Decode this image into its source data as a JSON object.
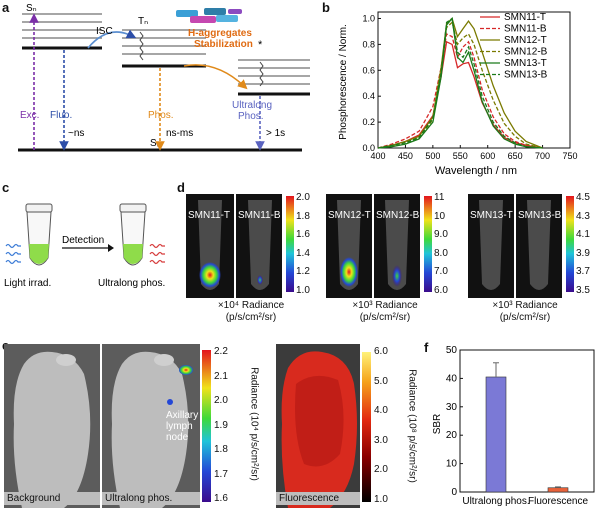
{
  "panels": [
    "a",
    "b",
    "c",
    "d",
    "e",
    "f"
  ],
  "panel_a": {
    "sn": "Sₙ",
    "tn": "Tₙ",
    "s0": "S₀",
    "isc": "ISC",
    "stabilization": [
      "H-aggregates",
      "Stabilization"
    ],
    "star": "*",
    "exc": "Exc.",
    "fluo": "Fluo.",
    "phos": "Phos.",
    "ultralong": [
      "Ultralong",
      "Phos."
    ],
    "t_fluo": "~ns",
    "t_phos": "ns-ms",
    "t_ultra": "> 1s"
  },
  "panel_c": {
    "detection": "Detection",
    "light_irrad": "Light irrad.",
    "ultralong_phos": "Ultralong phos."
  },
  "panel_d": {
    "groups": [
      {
        "tubes": [
          "SMN11-T",
          "SMN11-B"
        ],
        "ticks": [
          "2.0",
          "1.8",
          "1.6",
          "1.4",
          "1.2",
          "1.0"
        ],
        "unit": [
          "×10⁴ Radiance",
          "(p/s/cm²/sr)"
        ]
      },
      {
        "tubes": [
          "SMN12-T",
          "SMN12-B"
        ],
        "ticks": [
          "11",
          "10",
          "9.0",
          "8.0",
          "7.0",
          "6.0"
        ],
        "unit": [
          "×10³ Radiance",
          "(p/s/cm²/sr)"
        ]
      },
      {
        "tubes": [
          "SMN13-T",
          "SMN13-B"
        ],
        "ticks": [
          "4.5",
          "4.3",
          "4.1",
          "3.9",
          "3.7",
          "3.5"
        ],
        "unit": [
          "×10³ Radiance",
          "(p/s/cm²/sr)"
        ]
      }
    ]
  },
  "panel_e": {
    "background": "Background",
    "ultralong": "Ultralong phos.",
    "fluorescence": "Fluorescence",
    "node_label": [
      "Axillary",
      "lymph",
      "node"
    ],
    "scale1_ticks": [
      "2.2",
      "2.1",
      "2.0",
      "1.9",
      "1.8",
      "1.7",
      "1.6"
    ],
    "scale1_title": "Radiance (10⁴ p/s/cm²/sr)",
    "scale2_ticks": [
      "6.0",
      "5.0",
      "4.0",
      "3.0",
      "2.0",
      "1.0"
    ],
    "scale2_title": "Radiance (10⁸ p/s/cm²/sr)"
  },
  "chart_data": [
    {
      "type": "line",
      "title": "",
      "xlabel": "Wavelength / nm",
      "ylabel": "Phosphorescence / Norm.",
      "xlim": [
        400,
        750
      ],
      "ylim": [
        0,
        1.05
      ],
      "xticks": [
        400,
        450,
        500,
        550,
        600,
        650,
        700,
        750
      ],
      "yticks": [
        0.0,
        0.2,
        0.4,
        0.6,
        0.8,
        1.0
      ],
      "x": [
        400,
        425,
        450,
        475,
        500,
        515,
        525,
        535,
        545,
        555,
        565,
        575,
        590,
        610,
        630,
        650,
        670,
        700
      ],
      "series": [
        {
          "name": "SMN11-T",
          "color": "#d62728",
          "dash": false,
          "values": [
            0.0,
            0.02,
            0.05,
            0.1,
            0.25,
            0.55,
            0.82,
            0.8,
            0.62,
            0.65,
            0.66,
            0.55,
            0.35,
            0.18,
            0.08,
            0.04,
            0.02,
            0.0
          ]
        },
        {
          "name": "SMN11-B",
          "color": "#d62728",
          "dash": true,
          "values": [
            0.0,
            0.03,
            0.07,
            0.13,
            0.32,
            0.62,
            0.88,
            0.86,
            0.7,
            0.78,
            0.82,
            0.7,
            0.45,
            0.24,
            0.11,
            0.05,
            0.02,
            0.0
          ]
        },
        {
          "name": "SMN12-T",
          "color": "#7a7a00",
          "dash": false,
          "values": [
            0.0,
            0.02,
            0.05,
            0.09,
            0.24,
            0.62,
            0.96,
            1.0,
            0.86,
            0.92,
            0.98,
            0.92,
            0.74,
            0.48,
            0.27,
            0.13,
            0.05,
            0.0
          ]
        },
        {
          "name": "SMN12-B",
          "color": "#7a7a00",
          "dash": true,
          "values": [
            0.0,
            0.02,
            0.04,
            0.08,
            0.22,
            0.58,
            0.93,
            0.97,
            0.8,
            0.85,
            0.88,
            0.8,
            0.6,
            0.37,
            0.19,
            0.09,
            0.03,
            0.0
          ]
        },
        {
          "name": "SMN13-T",
          "color": "#1a7a1a",
          "dash": false,
          "values": [
            0.0,
            0.01,
            0.03,
            0.07,
            0.2,
            0.55,
            0.95,
            1.0,
            0.7,
            0.66,
            0.74,
            0.6,
            0.36,
            0.17,
            0.07,
            0.03,
            0.01,
            0.0
          ]
        },
        {
          "name": "SMN13-B",
          "color": "#1a7a1a",
          "dash": true,
          "values": [
            0.0,
            0.02,
            0.04,
            0.08,
            0.23,
            0.58,
            0.97,
            1.0,
            0.74,
            0.7,
            0.78,
            0.65,
            0.4,
            0.2,
            0.09,
            0.04,
            0.01,
            0.0
          ]
        }
      ]
    },
    {
      "type": "bar",
      "categories": [
        "Ultralong phos.",
        "Fluorescence"
      ],
      "values": [
        40.5,
        1.5
      ],
      "errors": [
        5,
        0.3
      ],
      "colors": [
        "#7b79d6",
        "#e8623a"
      ],
      "ylabel": "SBR",
      "ylim": [
        0,
        50
      ],
      "yticks": [
        0,
        10,
        20,
        30,
        40,
        50
      ]
    }
  ]
}
